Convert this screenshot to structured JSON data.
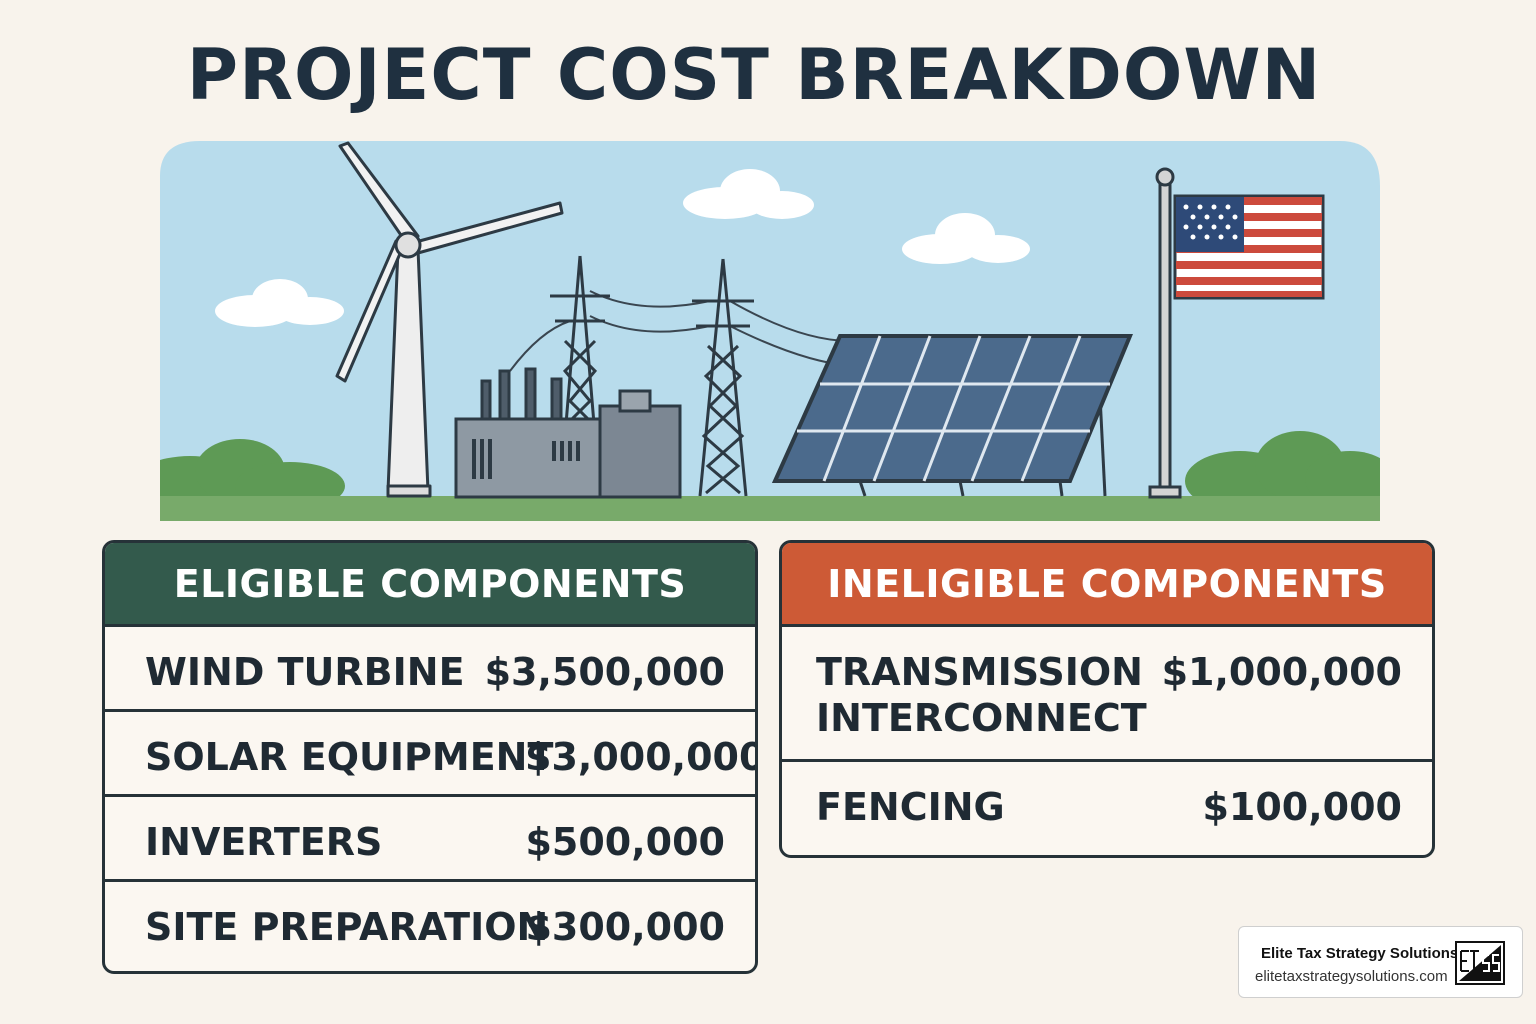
{
  "title": "PROJECT COST BREAKDOWN",
  "scene": {
    "icons": [
      "wind-turbine-icon",
      "power-plant-icon",
      "transmission-tower-icon",
      "solar-panel-icon",
      "american-flag-icon",
      "cloud-icon",
      "tree-icon"
    ],
    "colors": {
      "sky": "#b8dcec",
      "ground": "#78aa6a",
      "bush": "#5e9a55",
      "panel": "#4b6a8c",
      "flag_red": "#cc4a3c",
      "flag_blue": "#2e4a78"
    }
  },
  "eligible": {
    "header": "ELIGIBLE COMPONENTS",
    "color": "#335a4c",
    "rows": [
      {
        "label": "WIND TURBINE",
        "value": "$3,500,000"
      },
      {
        "label": "SOLAR EQUIPMENT",
        "value": "$3,000,000"
      },
      {
        "label": "INVERTERS",
        "value": "$500,000"
      },
      {
        "label": "SITE PREPARATION",
        "value": "$300,000"
      }
    ]
  },
  "ineligible": {
    "header": "INELIGIBLE COMPONENTS",
    "color": "#cd5a36",
    "rows": [
      {
        "label": "TRANSMISSION INTERCONNECT",
        "value": "$1,000,000"
      },
      {
        "label": "FENCING",
        "value": "$100,000"
      }
    ]
  },
  "brand": {
    "name": "Elite Tax Strategy Solutions",
    "url": "elitetaxstrategysolutions.com",
    "logo_icon": "etss-logo-icon"
  }
}
